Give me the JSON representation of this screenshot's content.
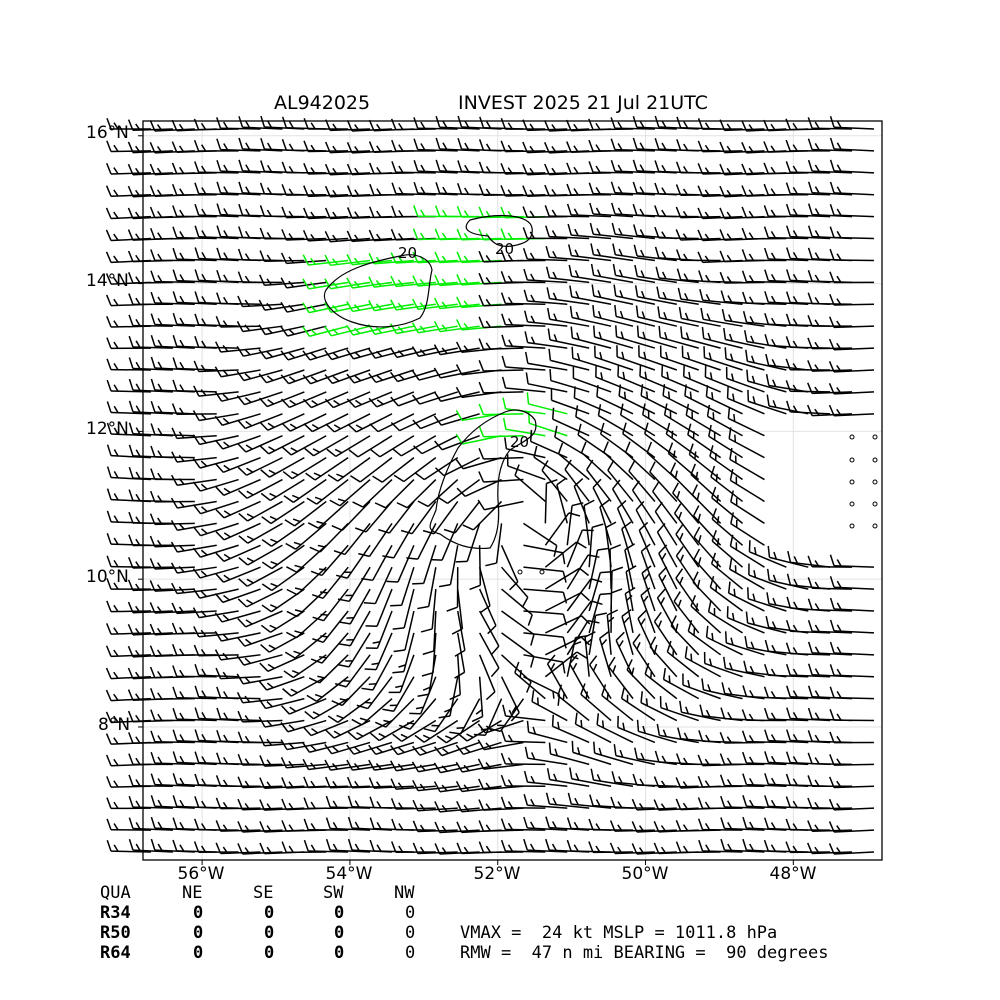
{
  "header": {
    "storm_id": "AL942025",
    "storm_title": "INVEST 2025 21 Jul 21UTC"
  },
  "map": {
    "lat_labels": [
      "16°N",
      "14°N",
      "12°N",
      "10°N",
      "8°N"
    ],
    "lon_labels": [
      "56°W",
      "54°W",
      "52°W",
      "50°W",
      "48°W"
    ],
    "extent": {
      "lon_min": -56.8,
      "lon_max": -46.8,
      "lat_min": 6.2,
      "lat_max": 16.2
    },
    "gridlines": true,
    "contour_labels": [
      "20",
      "20",
      "20"
    ],
    "barb_colors": {
      "normal": "#000000",
      "gale": "#00ee00"
    },
    "center": {
      "lon": -51.6,
      "lat": 10.9
    }
  },
  "wind_radii": {
    "columns": [
      "QUA",
      "NE",
      "SE",
      "SW",
      "NW"
    ],
    "rows": [
      {
        "label": "R34",
        "values": [
          "0",
          "0",
          "0",
          "0"
        ]
      },
      {
        "label": "R50",
        "values": [
          "0",
          "0",
          "0",
          "0"
        ]
      },
      {
        "label": "R64",
        "values": [
          "0",
          "0",
          "0",
          "0"
        ]
      }
    ]
  },
  "stats": {
    "line1": "VMAX =  24 kt MSLP = 1011.8 hPa",
    "line2": "RMW =  47 n mi BEARING =  90 degrees"
  }
}
